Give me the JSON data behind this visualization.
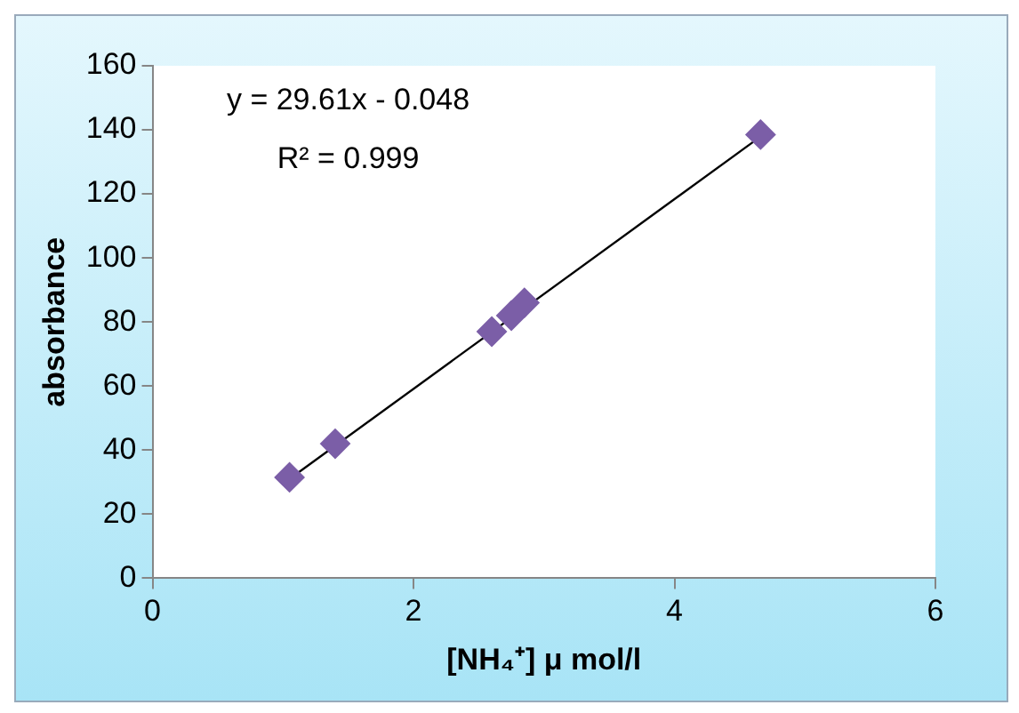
{
  "chart_data": {
    "type": "scatter",
    "xlabel": "[NH₄⁺] μ mol/l",
    "ylabel": "absorbance",
    "xlim": [
      0,
      6
    ],
    "xticks": [
      0,
      2,
      4,
      6
    ],
    "ylim": [
      0,
      160
    ],
    "yticks": [
      0,
      20,
      40,
      60,
      80,
      100,
      120,
      140,
      160
    ],
    "grid": false,
    "legend": false,
    "annotations": [
      "y = 29.61x - 0.048",
      "R² = 0.999"
    ],
    "series": [
      {
        "marker": "diamond",
        "color": "#7b5ea7",
        "x": [
          1.05,
          1.4,
          2.6,
          2.75,
          2.85,
          4.66
        ],
        "values": [
          31.5,
          42,
          77,
          82,
          86,
          138.5
        ]
      },
      {
        "type": "line",
        "color": "#000000",
        "marker": "none",
        "line_style": "solid",
        "x": [
          1.05,
          4.66
        ],
        "values": [
          31.0,
          137.9
        ]
      }
    ]
  }
}
